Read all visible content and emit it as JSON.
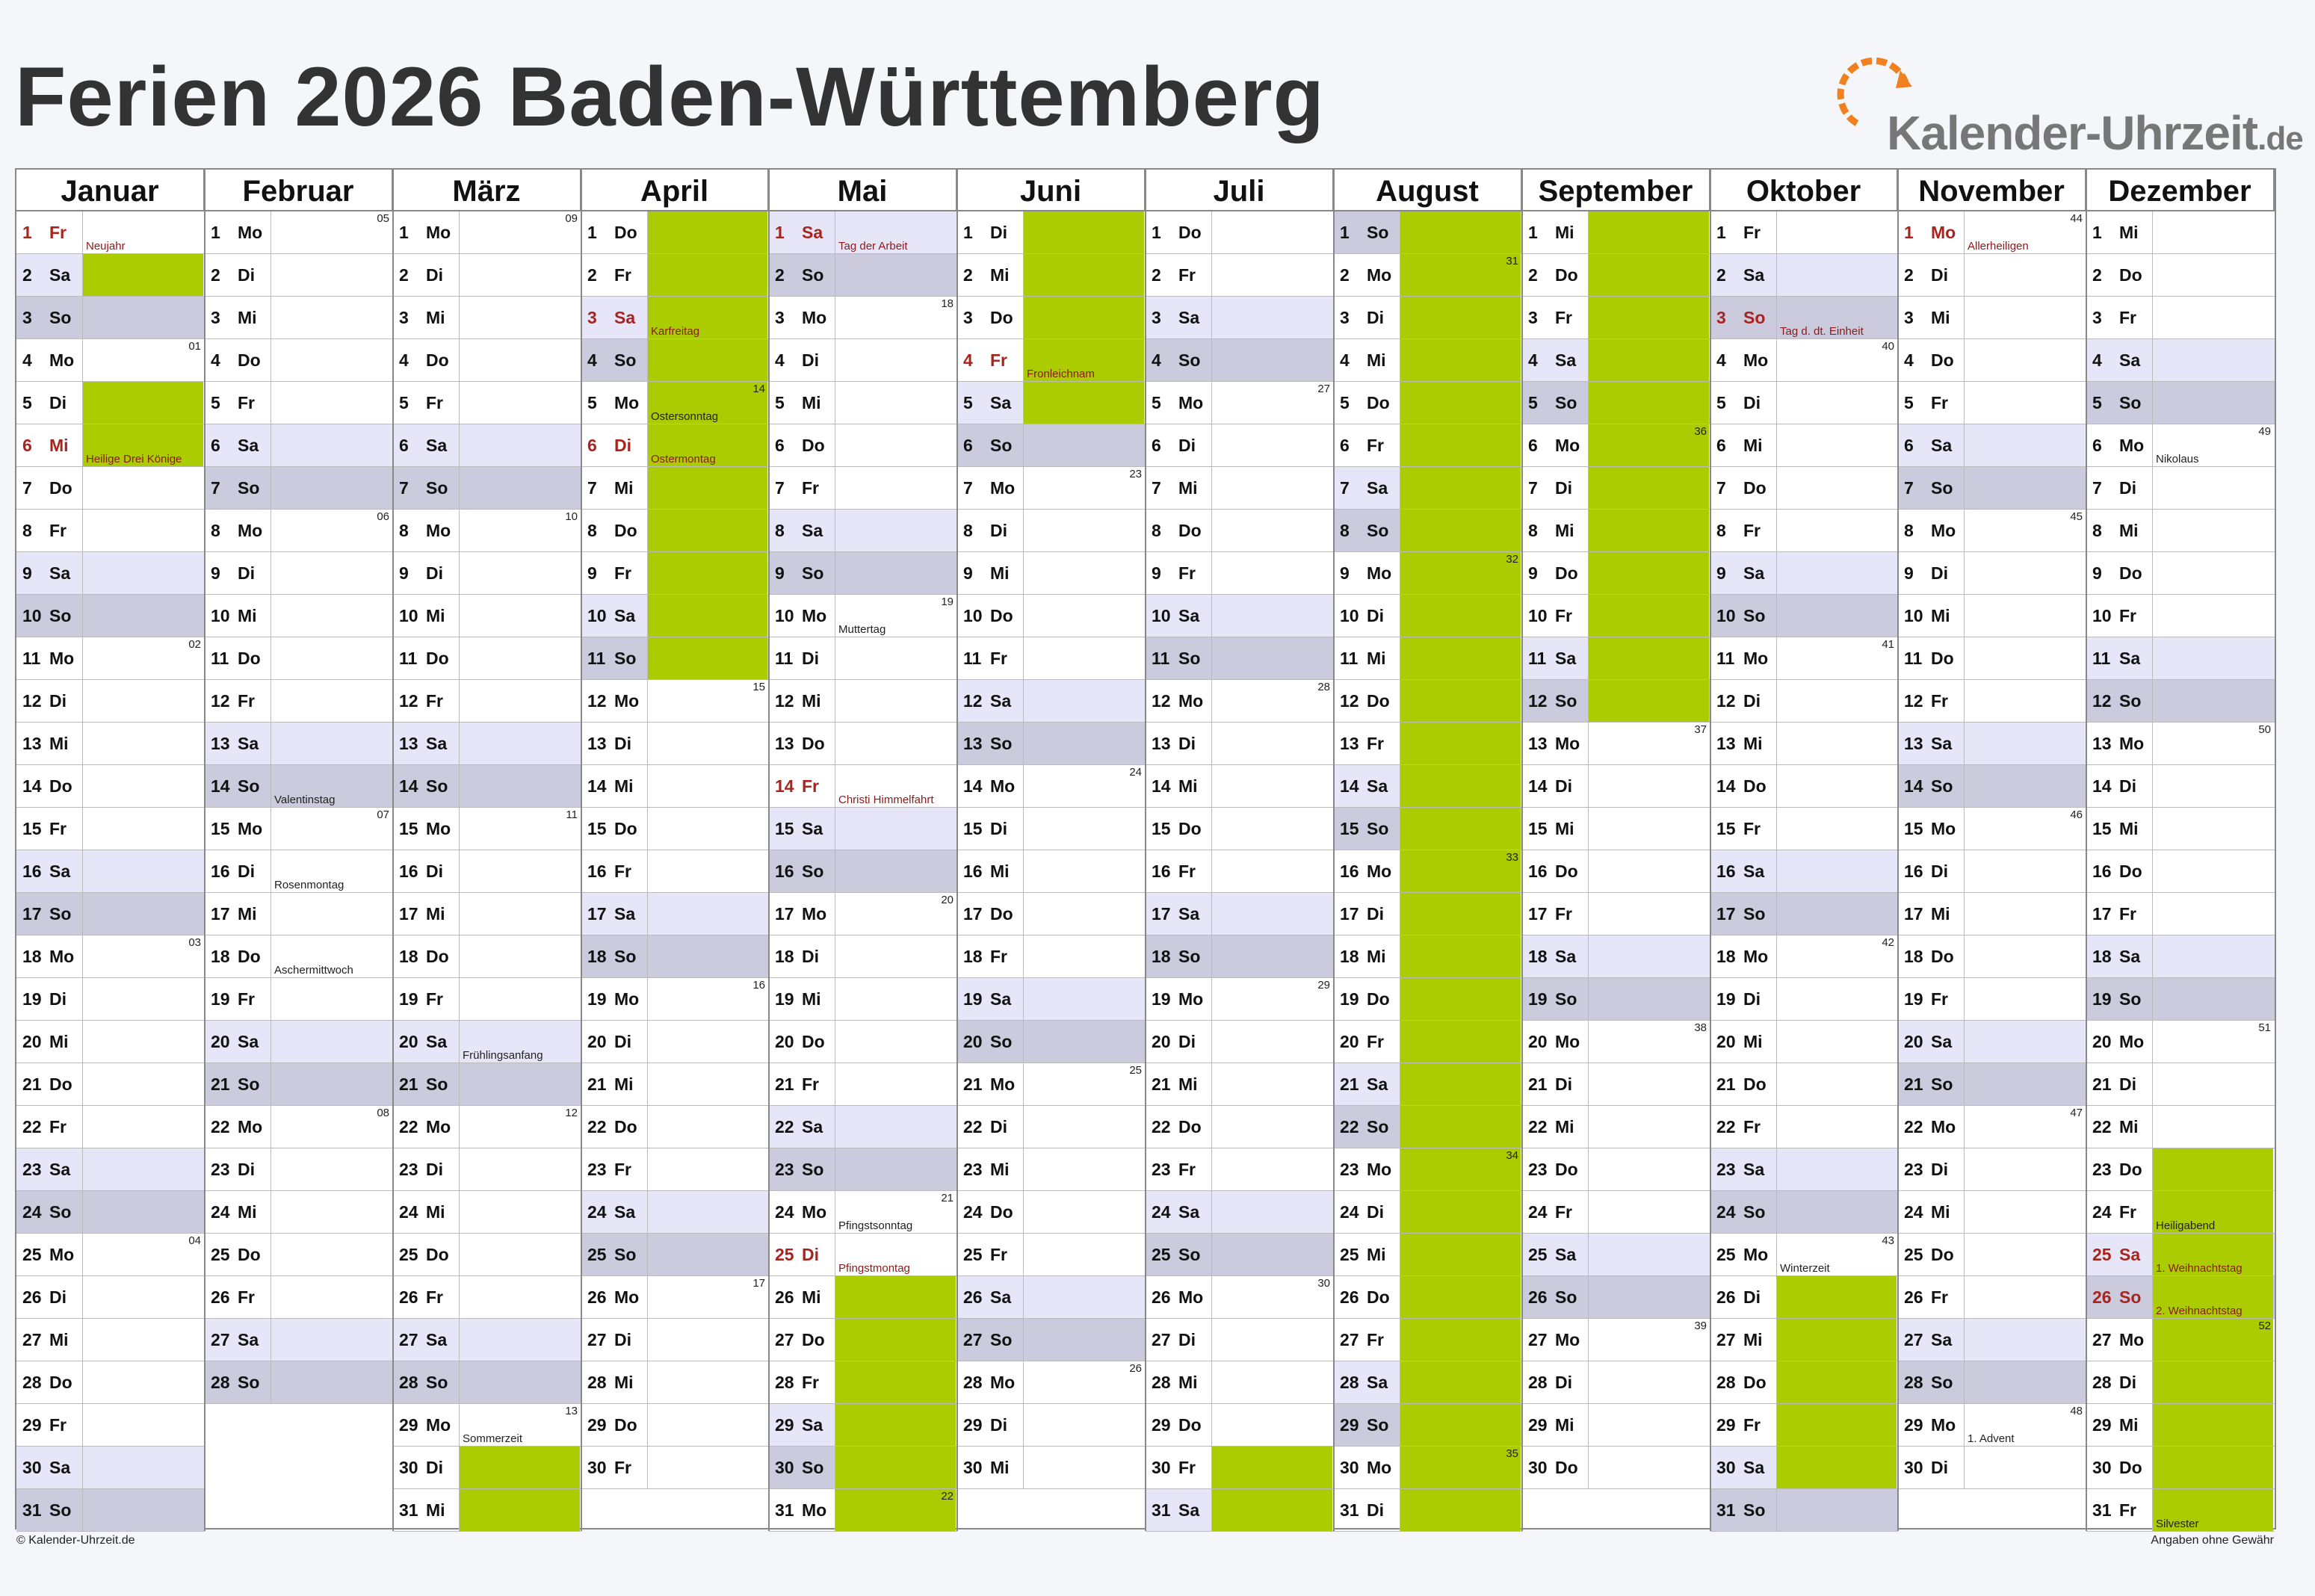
{
  "title": "Ferien 2026 Baden-Württemberg",
  "logo": {
    "text": "Kalender-Uhrzeit",
    "tld": ".de",
    "icon": "clock-arrow-icon"
  },
  "footer": {
    "left": "© Kalender-Uhrzeit.de",
    "right": "Angaben ohne Gewähr"
  },
  "colors": {
    "vacation": "#aacc00",
    "saturday": "#e6e6f8",
    "sunday": "#cbcbdd",
    "holiday_text": "#8a1a1a",
    "header_bg": "#ffffff"
  },
  "months": [
    {
      "name": "Januar",
      "days": 31,
      "start": 4
    },
    {
      "name": "Februar",
      "days": 28,
      "start": 0
    },
    {
      "name": "März",
      "days": 31,
      "start": 0
    },
    {
      "name": "April",
      "days": 30,
      "start": 3
    },
    {
      "name": "Mai",
      "days": 31,
      "start": 5
    },
    {
      "name": "Juni",
      "days": 30,
      "start": 1
    },
    {
      "name": "Juli",
      "days": 31,
      "start": 3
    },
    {
      "name": "August",
      "days": 31,
      "start": 6
    },
    {
      "name": "September",
      "days": 30,
      "start": 2
    },
    {
      "name": "Oktober",
      "days": 31,
      "start": 4
    },
    {
      "name": "November",
      "days": 30,
      "start": 0
    },
    {
      "name": "Dezember",
      "days": 31,
      "start": 2
    }
  ],
  "weekday_abbr": [
    "Mo",
    "Di",
    "Mi",
    "Do",
    "Fr",
    "Sa",
    "So"
  ],
  "vacations": [
    [
      [
        2,
        2
      ],
      [
        5,
        6
      ]
    ],
    [],
    [
      [
        30,
        31
      ]
    ],
    [
      [
        1,
        11
      ]
    ],
    [
      [
        26,
        31
      ]
    ],
    [
      [
        1,
        5
      ]
    ],
    [
      [
        30,
        31
      ]
    ],
    [
      [
        1,
        31
      ]
    ],
    [
      [
        1,
        12
      ]
    ],
    [
      [
        26,
        30
      ]
    ],
    [],
    [
      [
        23,
        31
      ]
    ]
  ],
  "holidays": [
    [
      {
        "d": 1,
        "t": "Neujahr",
        "p": true
      },
      {
        "d": 6,
        "t": "Heilige Drei Könige",
        "p": true
      }
    ],
    [
      {
        "d": 14,
        "t": "Valentinstag",
        "p": false
      },
      {
        "d": 16,
        "t": "Rosenmontag",
        "p": false
      },
      {
        "d": 18,
        "t": "Aschermittwoch",
        "p": false
      }
    ],
    [
      {
        "d": 20,
        "t": "Frühlingsanfang",
        "p": false
      },
      {
        "d": 29,
        "t": "Sommerzeit",
        "p": false
      }
    ],
    [
      {
        "d": 3,
        "t": "Karfreitag",
        "p": true
      },
      {
        "d": 5,
        "t": "Ostersonntag",
        "p": false
      },
      {
        "d": 6,
        "t": "Ostermontag",
        "p": true
      }
    ],
    [
      {
        "d": 1,
        "t": "Tag der Arbeit",
        "p": true
      },
      {
        "d": 10,
        "t": "Muttertag",
        "p": false
      },
      {
        "d": 14,
        "t": "Christi Himmelfahrt",
        "p": true
      },
      {
        "d": 24,
        "t": "Pfingstsonntag",
        "p": false
      },
      {
        "d": 25,
        "t": "Pfingstmontag",
        "p": true
      }
    ],
    [
      {
        "d": 4,
        "t": "Fronleichnam",
        "p": true
      }
    ],
    [],
    [],
    [],
    [
      {
        "d": 3,
        "t": "Tag d. dt. Einheit",
        "p": true
      },
      {
        "d": 25,
        "t": "Winterzeit",
        "p": false
      }
    ],
    [
      {
        "d": 1,
        "t": "Allerheiligen",
        "p": true
      },
      {
        "d": 29,
        "t": "1. Advent",
        "p": false
      }
    ],
    [
      {
        "d": 6,
        "t": "Nikolaus",
        "p": false
      },
      {
        "d": 24,
        "t": "Heiligabend",
        "p": false
      },
      {
        "d": 25,
        "t": "1. Weihnachtstag",
        "p": true
      },
      {
        "d": 26,
        "t": "2. Weihnachtstag",
        "p": true
      },
      {
        "d": 31,
        "t": "Silvester",
        "p": false
      }
    ]
  ]
}
